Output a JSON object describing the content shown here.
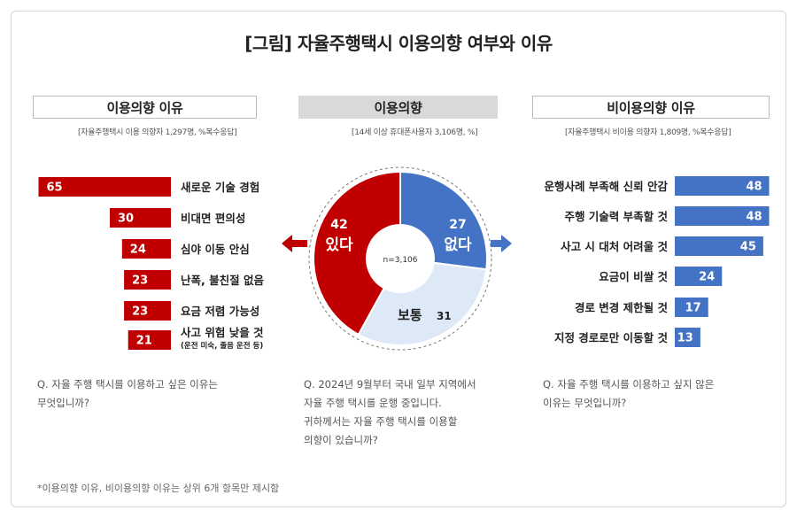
{
  "title": "[그림] 자율주행택시 이용의향 여부와 이유",
  "sections": {
    "left": {
      "header": "이용의향 이유",
      "subtitle": "[자율주행택시 이용 의향자 1,297명, %복수응답]"
    },
    "center": {
      "header": "이용의향",
      "subtitle": "[14세 이상 휴대폰사용자 3,106명, %]"
    },
    "right": {
      "header": "비이용의향 이유",
      "subtitle": "[자율주행택시 비이용 의향자 1,809명, %복수응답]"
    }
  },
  "questions": {
    "left": [
      "Q. 자율 주행 택시를 이용하고 싶은 이유는",
      "무엇입니까?"
    ],
    "center": [
      "Q. 2024년 9월부터 국내 일부 지역에서",
      "자율 주행 택시를 운행 중입니다.",
      "귀하께서는 자율 주행 택시를 이용할",
      "의향이 있습니까?"
    ],
    "right": [
      "Q. 자율 주행 택시를 이용하고 싶지 않은",
      "이유는 무엇입니까?"
    ]
  },
  "footnote": "*이용의향 이유, 비이용의향 이유는 상위 6개 항목만 제시함",
  "colors": {
    "red": "#c00000",
    "blue": "#4472c4",
    "light": "#dde9f7"
  },
  "chart_data": [
    {
      "type": "bar",
      "orientation": "horizontal",
      "direction": "right-to-left",
      "categories": [
        "새로운 기술 경험",
        "비대면 편의성",
        "심야 이동 안심",
        "난폭, 불친절 없음",
        "요금 저렴 가능성",
        "사고 위험 낮을 것"
      ],
      "category_notes": [
        "",
        "",
        "",
        "",
        "",
        "(운전 미숙, 졸음 운전 등)"
      ],
      "values": [
        65,
        30,
        24,
        23,
        23,
        21
      ],
      "color": "#c00000"
    },
    {
      "type": "pie",
      "donut": true,
      "center_label": "n=3,106",
      "slices": [
        {
          "label": "없다",
          "value": 27,
          "color": "#4472c4"
        },
        {
          "label": "보통",
          "value": 31,
          "color": "#dde9f7"
        },
        {
          "label": "있다",
          "value": 42,
          "color": "#c00000"
        }
      ]
    },
    {
      "type": "bar",
      "orientation": "horizontal",
      "direction": "left-to-right",
      "categories": [
        "운행사례 부족해 신뢰 안감",
        "주행 기술력 부족할 것",
        "사고 시 대처 어려울 것",
        "요금이 비쌀 것",
        "경로 변경 제한될 것",
        "지정 경로로만 이동할 것"
      ],
      "values": [
        48,
        48,
        45,
        24,
        17,
        13
      ],
      "color": "#4472c4"
    }
  ]
}
